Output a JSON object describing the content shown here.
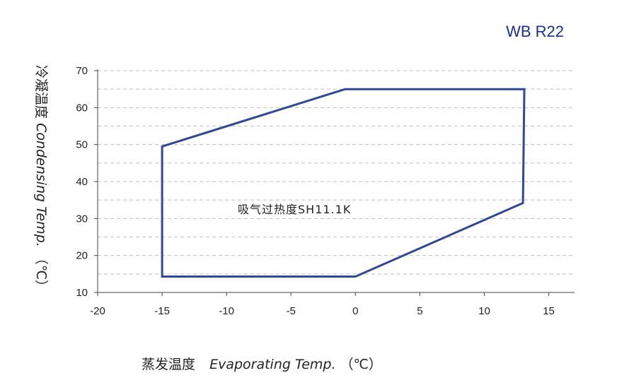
{
  "chart_data": {
    "type": "line",
    "title": "WB R22",
    "xlabel_cn": "蒸发温度",
    "xlabel_en": "Evaporating Temp.",
    "xlabel_unit": "（℃）",
    "ylabel_cn": "冷凝温度",
    "ylabel_en": "Condensing Temp.",
    "ylabel_unit": "（℃）",
    "xlim": [
      -20,
      17
    ],
    "ylim": [
      10,
      70
    ],
    "xticks": [
      -20,
      -15,
      -10,
      -5,
      0,
      5,
      10,
      15
    ],
    "yticks": [
      10,
      20,
      30,
      40,
      50,
      60,
      70
    ],
    "grid": {
      "y_minor_step": 5,
      "style": "dashed"
    },
    "annotation": "吸气过热度SH11.1K",
    "series": [
      {
        "color": "#2e4a94",
        "closed": true,
        "x": [
          -15,
          -0.8,
          13.1,
          13.0,
          0,
          -15
        ],
        "y": [
          49.5,
          65,
          65,
          34.2,
          14.3,
          14.3
        ]
      }
    ]
  }
}
